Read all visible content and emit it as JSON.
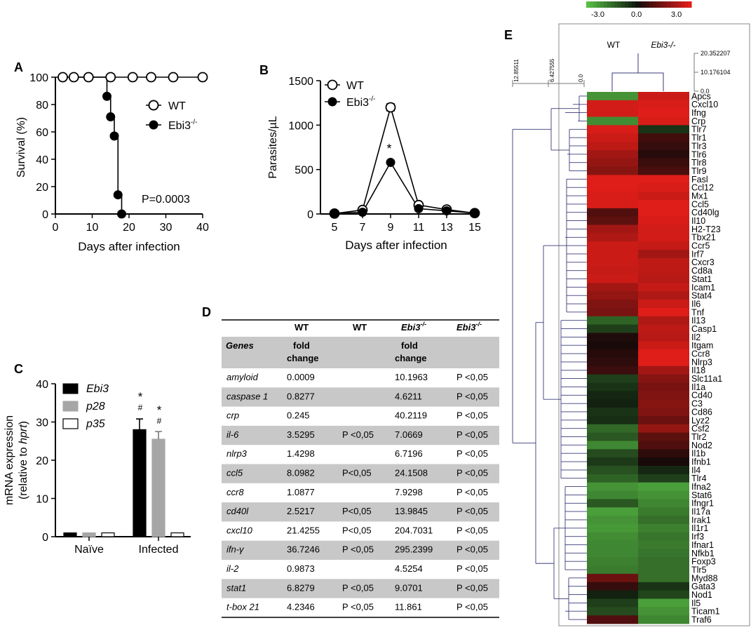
{
  "panel_letters": {
    "a": "A",
    "b": "B",
    "c": "C",
    "d": "D",
    "e": "E"
  },
  "chart_data": [
    {
      "id": "A",
      "type": "line",
      "xlabel": "Days after infection",
      "ylabel": "Survival (%)",
      "xlim": [
        0,
        40
      ],
      "ylim": [
        0,
        100
      ],
      "xticks": [
        0,
        10,
        20,
        30,
        40
      ],
      "yticks": [
        0,
        20,
        40,
        60,
        80,
        100
      ],
      "series": [
        {
          "name": "WT",
          "marker": "open-circle",
          "x": [
            2,
            5,
            9,
            15,
            21,
            26,
            32,
            40
          ],
          "y": [
            100,
            100,
            100,
            100,
            100,
            100,
            100,
            100
          ]
        },
        {
          "name": "Ebi3",
          "sup": "-/-",
          "marker": "filled-circle",
          "x": [
            14,
            15,
            16,
            17,
            18
          ],
          "y": [
            86,
            71,
            57,
            14,
            0
          ]
        }
      ],
      "annotation": "P=0.0003"
    },
    {
      "id": "B",
      "type": "line",
      "xlabel": "Days after infection",
      "ylabel": "Parasites/µL",
      "xlim": [
        4,
        15
      ],
      "ylim": [
        0,
        1500
      ],
      "xticks": [
        5,
        7,
        9,
        11,
        13,
        15
      ],
      "yticks": [
        0,
        500,
        1000,
        1500
      ],
      "series": [
        {
          "name": "WT",
          "marker": "open-circle",
          "x": [
            5,
            7,
            9,
            11,
            13,
            15
          ],
          "y": [
            5,
            45,
            1200,
            100,
            50,
            10
          ],
          "err": [
            0,
            0,
            40,
            0,
            0,
            0
          ]
        },
        {
          "name": "Ebi3",
          "sup": "-/-",
          "marker": "filled-circle",
          "x": [
            5,
            7,
            9,
            11,
            13,
            15
          ],
          "y": [
            5,
            20,
            580,
            60,
            35,
            10
          ],
          "err": [
            0,
            0,
            0,
            0,
            0,
            0
          ]
        }
      ],
      "annotation": "*"
    },
    {
      "id": "C",
      "type": "bar",
      "ylabel_line1": "mRNA expression",
      "ylabel_line2_prefix": "(relative to ",
      "ylabel_line2_ital": "hprt",
      "ylabel_line2_suffix": ")",
      "ylim": [
        0,
        40
      ],
      "yticks": [
        0,
        10,
        20,
        30,
        40
      ],
      "categories": [
        "Naïve",
        "Infected"
      ],
      "series": [
        {
          "name": "Ebi3",
          "color": "#000000",
          "values": [
            1,
            28
          ],
          "err": [
            0,
            2.8
          ]
        },
        {
          "name": "p28",
          "color": "#a6a6a6",
          "values": [
            1,
            25.5
          ],
          "err": [
            0,
            2.0
          ]
        },
        {
          "name": "p35",
          "color": "#ffffff",
          "values": [
            1,
            1
          ],
          "err": [
            0,
            0
          ]
        }
      ],
      "annotations": {
        "star": "*",
        "hash": "#"
      }
    },
    {
      "id": "D",
      "type": "table",
      "header": {
        "c1": "WT",
        "c2": "WT",
        "c3": "Ebi3",
        "c3_sup": "-/-",
        "c4": "Ebi3",
        "c4_sup": "-/-"
      },
      "subheader": {
        "genes": "Genes",
        "fc1_a": "fold",
        "fc1_b": "change",
        "fc2_a": "fold",
        "fc2_b": "change"
      },
      "rows": [
        {
          "gene": "amyloid",
          "wt_fc": "0.0009",
          "wt_p": "",
          "ko_fc": "10.1963",
          "ko_p": "P <0,05"
        },
        {
          "gene": "caspase 1",
          "wt_fc": "0.8277",
          "wt_p": "",
          "ko_fc": "4.6211",
          "ko_p": "P <0,05"
        },
        {
          "gene": "crp",
          "wt_fc": "0.245",
          "wt_p": "",
          "ko_fc": "40.2119",
          "ko_p": "P <0,05"
        },
        {
          "gene": "il-6",
          "wt_fc": "3.5295",
          "wt_p": "P <0,05",
          "ko_fc": "7.0669",
          "ko_p": "P <0,05"
        },
        {
          "gene": "nlrp3",
          "wt_fc": "1.4298",
          "wt_p": "",
          "ko_fc": "6.7196",
          "ko_p": "P <0,05"
        },
        {
          "gene": "ccl5",
          "wt_fc": "8.0982",
          "wt_p": "P<0,05",
          "ko_fc": "24.1508",
          "ko_p": "P <0,05"
        },
        {
          "gene": "ccr8",
          "wt_fc": "1.0877",
          "wt_p": "",
          "ko_fc": "7.9298",
          "ko_p": "P <0,05"
        },
        {
          "gene": "cd40l",
          "wt_fc": "2.5217",
          "wt_p": "P<0,05",
          "ko_fc": "13.9845",
          "ko_p": "P <0,05"
        },
        {
          "gene": "cxcl10",
          "wt_fc": "21.4255",
          "wt_p": "P<0,05",
          "ko_fc": "204.7031",
          "ko_p": "P <0,05"
        },
        {
          "gene": "ifn-γ",
          "wt_fc": "36.7246",
          "wt_p": "P <0,05",
          "ko_fc": "295.2399",
          "ko_p": "P <0,05"
        },
        {
          "gene": "il-2",
          "wt_fc": "0.9873",
          "wt_p": "",
          "ko_fc": "4.5254",
          "ko_p": "P <0,05"
        },
        {
          "gene": "stat1",
          "wt_fc": "6.8279",
          "wt_p": "P <0,05",
          "ko_fc": "9.0701",
          "ko_p": "P <0,05"
        },
        {
          "gene": "t-box 21",
          "wt_fc": "4.2346",
          "wt_p": "P <0,05",
          "ko_fc": "11.861",
          "ko_p": "P <0,05"
        }
      ]
    },
    {
      "id": "E",
      "type": "heatmap",
      "colorbar": {
        "labels": [
          "-3.0",
          "0.0",
          "3.0"
        ],
        "range": [
          -3,
          3
        ]
      },
      "columns": [
        {
          "label": "WT",
          "italic": false
        },
        {
          "label": "Ebi3-/-",
          "italic": true
        }
      ],
      "row_dendro_scale": [
        "12.85511",
        "6.427555",
        "0.0"
      ],
      "col_dendro_scale": [
        "20.352207",
        "10.176104",
        "0.0"
      ],
      "rows": [
        {
          "gene": "Apcs",
          "v": [
            -2.2,
            2.6
          ]
        },
        {
          "gene": "Cxcl10",
          "v": [
            2.7,
            2.8
          ]
        },
        {
          "gene": "Ifng",
          "v": [
            2.7,
            2.9
          ]
        },
        {
          "gene": "Crp",
          "v": [
            -2.1,
            2.8
          ]
        },
        {
          "gene": "Tlr7",
          "v": [
            2.8,
            -0.6
          ]
        },
        {
          "gene": "Tlr1",
          "v": [
            2.6,
            0.6
          ]
        },
        {
          "gene": "Tlr3",
          "v": [
            2.4,
            0.4
          ]
        },
        {
          "gene": "Tlr6",
          "v": [
            2.0,
            0.2
          ]
        },
        {
          "gene": "Tlr8",
          "v": [
            1.8,
            0.5
          ]
        },
        {
          "gene": "Tlr9",
          "v": [
            1.6,
            0.7
          ]
        },
        {
          "gene": "Fasl",
          "v": [
            2.9,
            2.9
          ]
        },
        {
          "gene": "Ccl12",
          "v": [
            2.9,
            2.8
          ]
        },
        {
          "gene": "Mx1",
          "v": [
            2.8,
            2.6
          ]
        },
        {
          "gene": "Ccl5",
          "v": [
            2.8,
            2.9
          ]
        },
        {
          "gene": "Cd40lg",
          "v": [
            0.8,
            2.9
          ]
        },
        {
          "gene": "Il10",
          "v": [
            1.0,
            2.8
          ]
        },
        {
          "gene": "H2-T23",
          "v": [
            2.0,
            2.7
          ]
        },
        {
          "gene": "Tbx21",
          "v": [
            2.2,
            2.7
          ]
        },
        {
          "gene": "Ccr5",
          "v": [
            2.6,
            2.5
          ]
        },
        {
          "gene": "Irf7",
          "v": [
            2.6,
            2.0
          ]
        },
        {
          "gene": "Cxcr3",
          "v": [
            2.6,
            2.4
          ]
        },
        {
          "gene": "Cd8a",
          "v": [
            2.5,
            2.4
          ]
        },
        {
          "gene": "Stat1",
          "v": [
            2.6,
            2.3
          ]
        },
        {
          "gene": "Icam1",
          "v": [
            2.0,
            2.5
          ]
        },
        {
          "gene": "Stat4",
          "v": [
            1.8,
            2.2
          ]
        },
        {
          "gene": "Il6",
          "v": [
            1.5,
            2.6
          ]
        },
        {
          "gene": "Tnf",
          "v": [
            1.4,
            2.9
          ]
        },
        {
          "gene": "Il13",
          "v": [
            -1.4,
            2.2
          ]
        },
        {
          "gene": "Casp1",
          "v": [
            -0.8,
            2.4
          ]
        },
        {
          "gene": "Il2",
          "v": [
            0.1,
            2.3
          ]
        },
        {
          "gene": "Itgam",
          "v": [
            0.0,
            2.6
          ]
        },
        {
          "gene": "Ccr8",
          "v": [
            0.2,
            2.9
          ]
        },
        {
          "gene": "Nlrp3",
          "v": [
            0.3,
            2.9
          ]
        },
        {
          "gene": "Il18",
          "v": [
            0.5,
            2.0
          ]
        },
        {
          "gene": "Slc11a1",
          "v": [
            -0.8,
            1.6
          ]
        },
        {
          "gene": "Il1a",
          "v": [
            -0.6,
            1.4
          ]
        },
        {
          "gene": "Cd40",
          "v": [
            -0.4,
            1.5
          ]
        },
        {
          "gene": "C3",
          "v": [
            -0.3,
            1.6
          ]
        },
        {
          "gene": "Cd86",
          "v": [
            -0.6,
            1.5
          ]
        },
        {
          "gene": "Lyz2",
          "v": [
            -0.5,
            1.2
          ]
        },
        {
          "gene": "Csf2",
          "v": [
            -1.5,
            1.8
          ]
        },
        {
          "gene": "Tlr2",
          "v": [
            -1.2,
            1.0
          ]
        },
        {
          "gene": "Nod2",
          "v": [
            -2.0,
            0.8
          ]
        },
        {
          "gene": "Il1b",
          "v": [
            -1.0,
            0.3
          ]
        },
        {
          "gene": "Ifnb1",
          "v": [
            -0.7,
            0.0
          ]
        },
        {
          "gene": "Il4",
          "v": [
            -1.1,
            -0.4
          ]
        },
        {
          "gene": "Tlr4",
          "v": [
            -1.4,
            -0.8
          ]
        },
        {
          "gene": "Ifna2",
          "v": [
            -2.2,
            -2.4
          ]
        },
        {
          "gene": "Stat6",
          "v": [
            -2.0,
            -2.2
          ]
        },
        {
          "gene": "Ifngr1",
          "v": [
            -1.2,
            -2.0
          ]
        },
        {
          "gene": "Il17a",
          "v": [
            -2.4,
            -1.8
          ]
        },
        {
          "gene": "Irak1",
          "v": [
            -2.2,
            -1.6
          ]
        },
        {
          "gene": "Il1r1",
          "v": [
            -2.3,
            -1.9
          ]
        },
        {
          "gene": "Irf3",
          "v": [
            -2.1,
            -1.7
          ]
        },
        {
          "gene": "Ifnar1",
          "v": [
            -2.0,
            -1.8
          ]
        },
        {
          "gene": "Nfkb1",
          "v": [
            -2.0,
            -1.7
          ]
        },
        {
          "gene": "Foxp3",
          "v": [
            -1.9,
            -1.6
          ]
        },
        {
          "gene": "Tlr5",
          "v": [
            -1.8,
            -1.6
          ]
        },
        {
          "gene": "Myd88",
          "v": [
            1.2,
            -1.6
          ]
        },
        {
          "gene": "Gata3",
          "v": [
            0.4,
            -0.6
          ]
        },
        {
          "gene": "Nod1",
          "v": [
            -0.3,
            -0.9
          ]
        },
        {
          "gene": "Il5",
          "v": [
            -0.8,
            -2.4
          ]
        },
        {
          "gene": "Ticam1",
          "v": [
            -1.0,
            -2.2
          ]
        },
        {
          "gene": "Traf6",
          "v": [
            0.8,
            -2.0
          ]
        }
      ]
    }
  ]
}
